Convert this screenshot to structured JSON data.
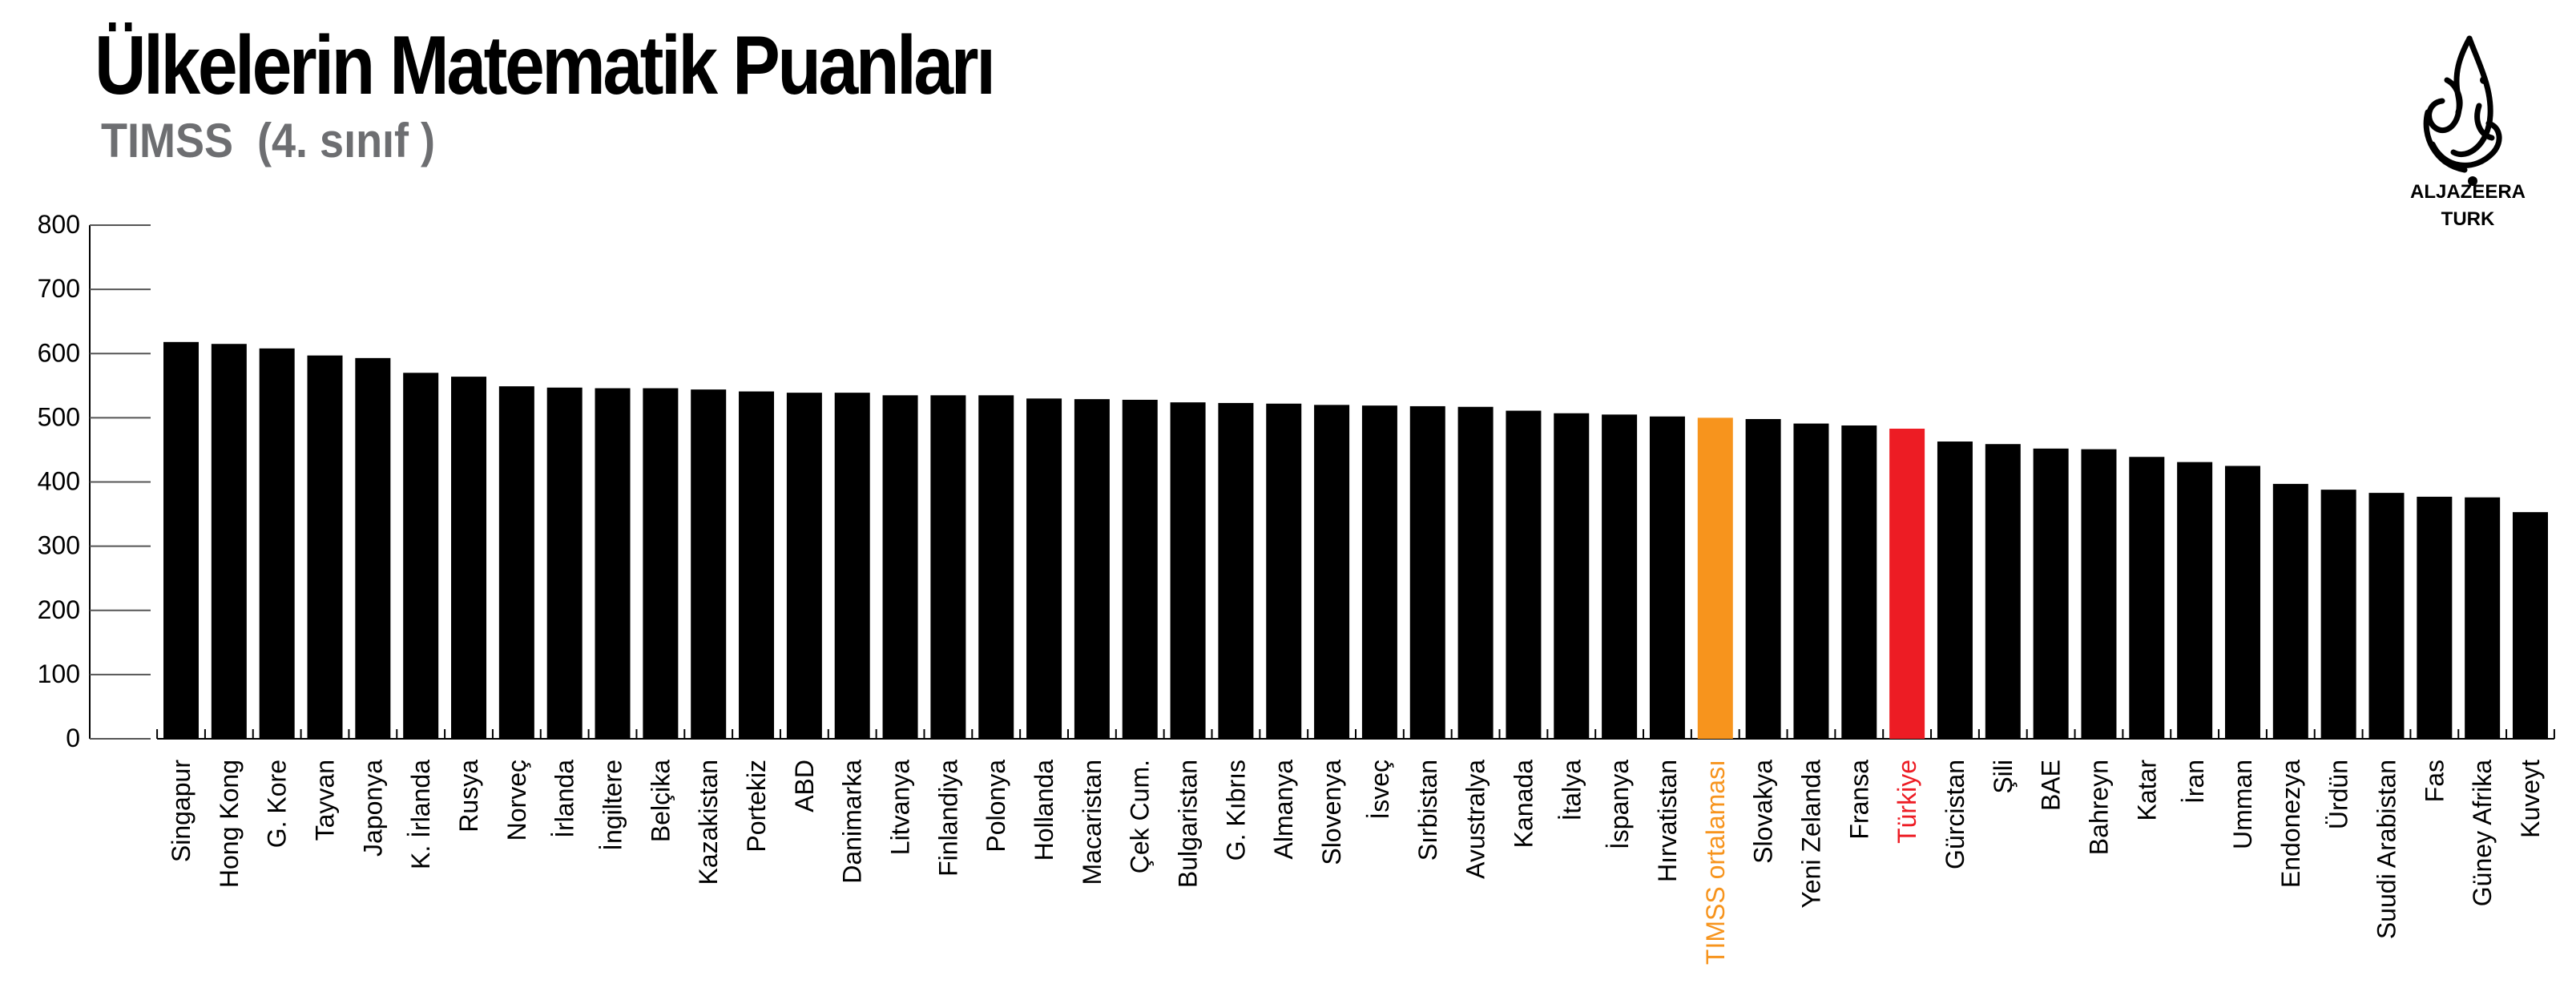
{
  "header": {
    "title": "Ülkelerin Matematik Puanları",
    "subtitle": "TIMSS  (4. sınıf )"
  },
  "logo": {
    "icon": "aljazeera-calligraphy-icon",
    "name": "ALJAZEERA",
    "sub": "TURK"
  },
  "colors": {
    "bar": "#000000",
    "average": "#f7941d",
    "highlight": "#ed1c24",
    "axis": "#000000",
    "label": "#000000"
  },
  "chart_data": {
    "type": "bar",
    "title": "Ülkelerin Matematik Puanları",
    "subtitle": "TIMSS  (4. sınıf )",
    "ylim": [
      0,
      800
    ],
    "yticks": [
      0,
      100,
      200,
      300,
      400,
      500,
      600,
      700,
      800
    ],
    "grid": false,
    "categories": [
      "Singapur",
      "Hong Kong",
      "G. Kore",
      "Tayvan",
      "Japonya",
      "K. İrlanda",
      "Rusya",
      "Norveç",
      "İrlanda",
      "İngiltere",
      "Belçika",
      "Kazakistan",
      "Portekiz",
      "ABD",
      "Danimarka",
      "Litvanya",
      "Finlandiya",
      "Polonya",
      "Hollanda",
      "Macaristan",
      "Çek Cum.",
      "Bulgaristan",
      "G. Kıbrıs",
      "Almanya",
      "Slovenya",
      "İsveç",
      "Sırbistan",
      "Avustralya",
      "Kanada",
      "İtalya",
      "İspanya",
      "Hırvatistan",
      "TIMSS ortalaması",
      "Slovakya",
      "Yeni Zelanda",
      "Fransa",
      "Türkiye",
      "Gürcistan",
      "Şili",
      "BAE",
      "Bahreyn",
      "Katar",
      "İran",
      "Umman",
      "Endonezya",
      "Ürdün",
      "Suudi Arabistan",
      "Fas",
      "Güney Afrika",
      "Kuveyt"
    ],
    "values": [
      618,
      615,
      608,
      597,
      593,
      570,
      564,
      549,
      547,
      546,
      546,
      544,
      541,
      539,
      539,
      535,
      535,
      535,
      530,
      529,
      528,
      524,
      523,
      522,
      520,
      519,
      518,
      517,
      511,
      507,
      505,
      502,
      500,
      498,
      491,
      488,
      483,
      463,
      459,
      452,
      451,
      439,
      431,
      425,
      397,
      388,
      383,
      377,
      376,
      353
    ],
    "highlights": {
      "TIMSS ortalaması": "average",
      "Türkiye": "highlight"
    }
  }
}
